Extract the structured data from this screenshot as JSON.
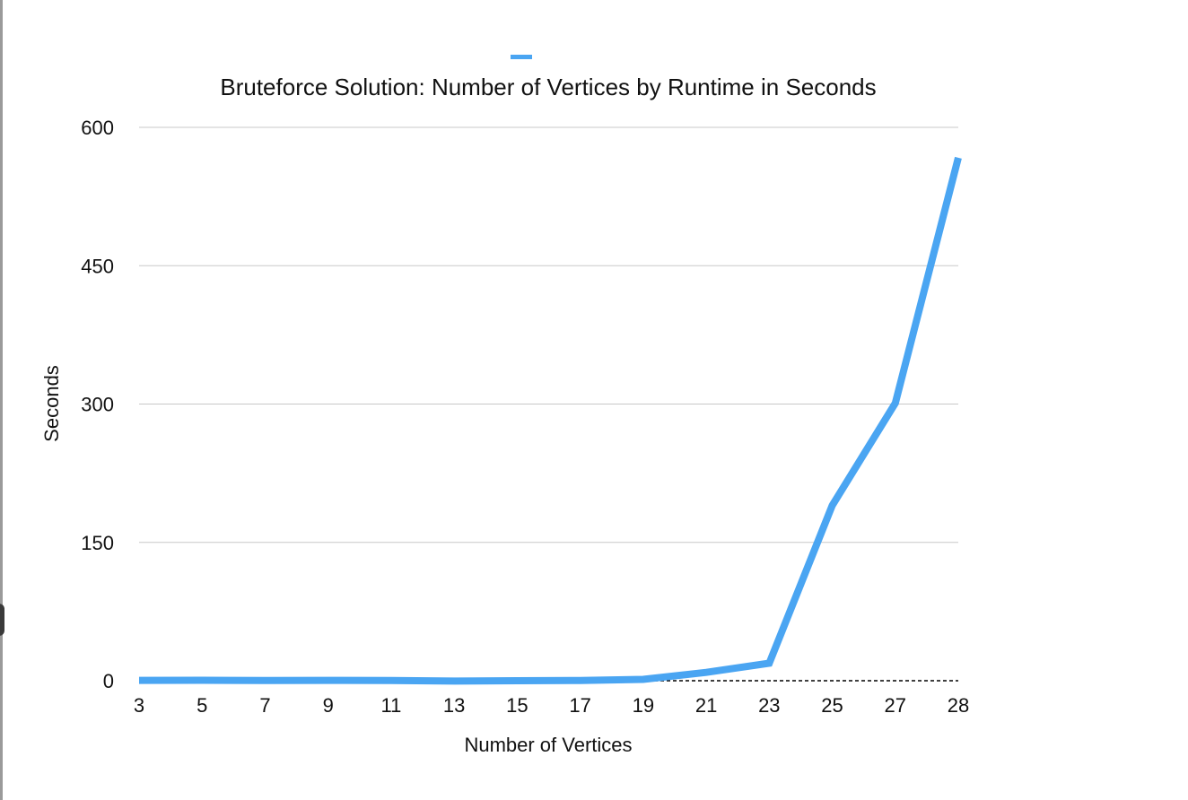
{
  "colors": {
    "series": "#4aa5f2",
    "grid": "#c8c8c8",
    "baseline": "#000000",
    "text": "#111111"
  },
  "chart_data": {
    "type": "line",
    "title": "Bruteforce Solution: Number of Vertices by Runtime in Seconds",
    "xlabel": "Number of Vertices",
    "ylabel": "Seconds",
    "categories": [
      "3",
      "5",
      "7",
      "9",
      "11",
      "13",
      "15",
      "17",
      "19",
      "21",
      "23",
      "25",
      "27",
      "28"
    ],
    "series": [
      {
        "name": "",
        "values": [
          0.4,
          0.5,
          0.3,
          0.4,
          0.3,
          -0.4,
          0.0,
          0.3,
          1.5,
          9,
          19,
          190,
          301,
          567
        ]
      }
    ],
    "yticks": [
      "0",
      "150",
      "300",
      "450",
      "600"
    ],
    "ylim": [
      0,
      600
    ],
    "grid": true,
    "legend": "top"
  }
}
